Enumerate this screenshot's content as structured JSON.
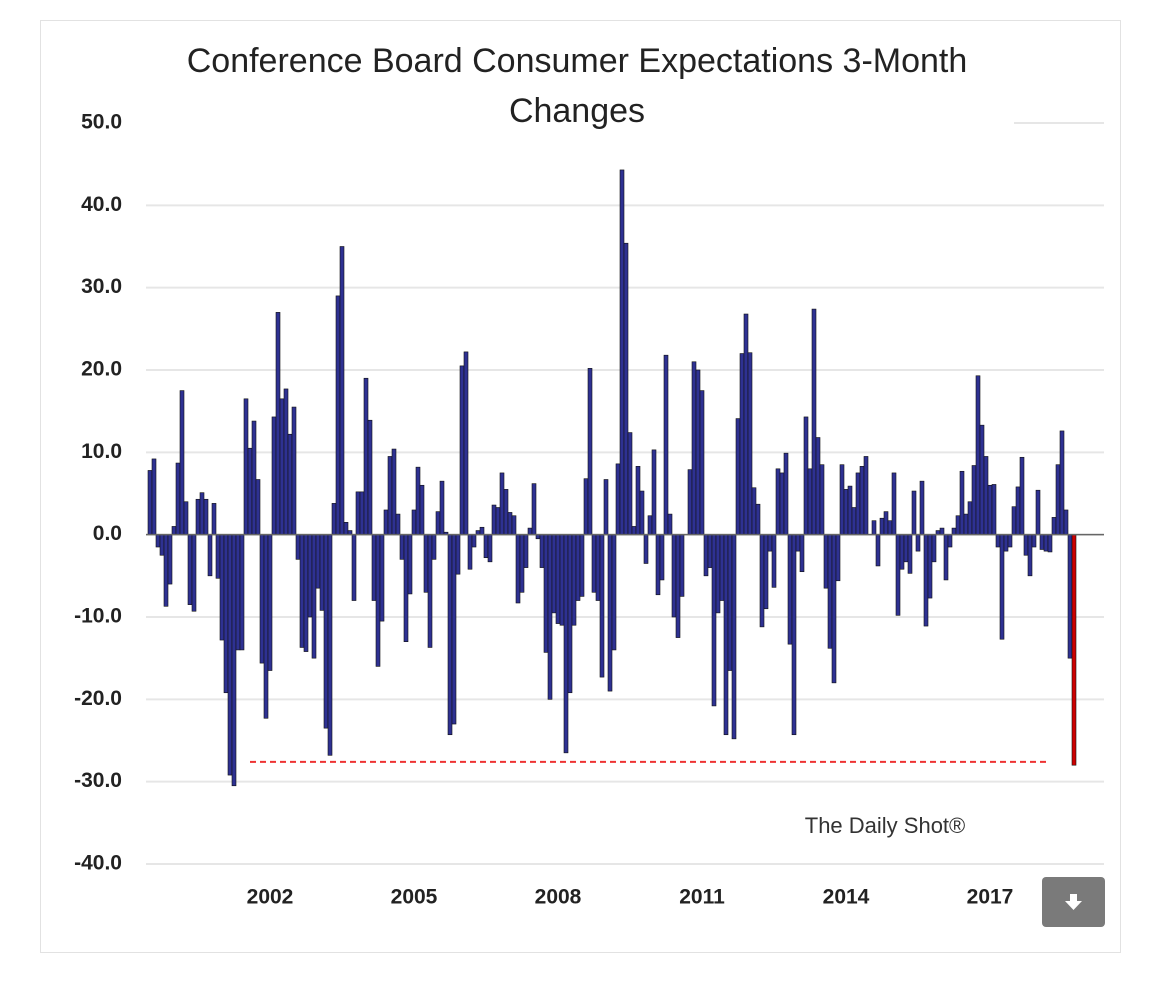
{
  "chart_data": {
    "type": "bar",
    "title": "Conference Board Consumer Expectations 3-Month Changes",
    "watermark": "The Daily Shot®",
    "categories": [
      null,
      null,
      null,
      null,
      null,
      null,
      null,
      null,
      null,
      null,
      null,
      null,
      null,
      null,
      null,
      null,
      null,
      null,
      null,
      null,
      null,
      null,
      null,
      null,
      null,
      null,
      null,
      null,
      "2002",
      null,
      null,
      null,
      null,
      null,
      null,
      null,
      null,
      null,
      null,
      null,
      null,
      null,
      null,
      null,
      null,
      null,
      null,
      null,
      null,
      null,
      null,
      null,
      null,
      null,
      null,
      null,
      null,
      null,
      null,
      null,
      null,
      null,
      null,
      null,
      "2005",
      null,
      null,
      null,
      null,
      null,
      null,
      null,
      null,
      null,
      null,
      null,
      null,
      null,
      null,
      null,
      null,
      null,
      null,
      null,
      null,
      null,
      null,
      null,
      null,
      null,
      null,
      null,
      null,
      null,
      null,
      null,
      null,
      null,
      null,
      null,
      "2008",
      null,
      null,
      null,
      null,
      null,
      null,
      null,
      null,
      null,
      null,
      null,
      null,
      null,
      null,
      null,
      null,
      null,
      null,
      null,
      null,
      null,
      null,
      null,
      null,
      null,
      null,
      null,
      null,
      null,
      null,
      null,
      null,
      null,
      null,
      null,
      "2011",
      null,
      null,
      null,
      null,
      null,
      null,
      null,
      null,
      null,
      null,
      null,
      null,
      null,
      null,
      null,
      null,
      null,
      null,
      null,
      null,
      null,
      null,
      null,
      null,
      null,
      null,
      null,
      null,
      null,
      null,
      null,
      null,
      null,
      null,
      null,
      "2014",
      null,
      null,
      null,
      null,
      null,
      null,
      null,
      null,
      null,
      null,
      null,
      null,
      null,
      null,
      null,
      null,
      null,
      null,
      null,
      null,
      null,
      null,
      null,
      null,
      null,
      null,
      null,
      null,
      null,
      null,
      null,
      null,
      null,
      null,
      null,
      "2017",
      null,
      null,
      null,
      null,
      null,
      null,
      null,
      null,
      null,
      null,
      null,
      null,
      null,
      null,
      null,
      null,
      null,
      null,
      null,
      null,
      null,
      null,
      null
    ],
    "values": [
      7.8,
      9.2,
      -1.5,
      -2.5,
      -8.7,
      -6,
      1,
      8.7,
      17.5,
      4,
      -8.5,
      -9.3,
      4.3,
      5.1,
      4.3,
      -5,
      3.8,
      -5.3,
      -12.8,
      -19.2,
      -29.2,
      -30.5,
      -14,
      -14,
      16.5,
      10.5,
      13.8,
      6.7,
      -15.6,
      -22.3,
      -16.5,
      14.3,
      27,
      16.5,
      17.7,
      12.2,
      15.5,
      -3,
      -13.7,
      -14.2,
      -10,
      -15,
      -6.5,
      -9.2,
      -23.5,
      -26.8,
      3.8,
      29,
      35,
      1.5,
      0.5,
      -8,
      5.2,
      5.2,
      19,
      13.9,
      -8,
      -16,
      -10.5,
      3,
      9.5,
      10.4,
      2.5,
      -3,
      -13,
      -7.2,
      3,
      8.2,
      6,
      -7,
      -13.7,
      -3,
      2.8,
      6.5,
      0.3,
      -24.3,
      -23,
      -4.8,
      20.5,
      22.2,
      -4.2,
      -1.5,
      0.5,
      0.9,
      -2.8,
      -3.3,
      3.6,
      3.3,
      7.5,
      5.5,
      2.7,
      2.3,
      -8.3,
      -7,
      -4,
      0.8,
      6.2,
      -0.5,
      -4,
      -14.3,
      -20,
      -9.5,
      -10.8,
      -11,
      -26.5,
      -19.2,
      -11,
      -8,
      -7.5,
      6.8,
      20.2,
      -7,
      -8,
      -17.3,
      6.7,
      -19,
      -14,
      8.6,
      44.3,
      35.4,
      12.4,
      1,
      8.3,
      5.3,
      -3.5,
      2.3,
      10.3,
      -7.3,
      -5.5,
      21.8,
      2.5,
      -10,
      -12.5,
      -7.5,
      0,
      7.9,
      21,
      20,
      17.5,
      -5,
      -4,
      -20.8,
      -9.5,
      -8,
      -24.3,
      -16.5,
      -24.8,
      14.1,
      22,
      26.8,
      22.1,
      5.7,
      3.7,
      -11.2,
      -9,
      -2,
      -6.4,
      8,
      7.5,
      9.9,
      -13.3,
      -24.3,
      -2,
      -4.5,
      14.3,
      8,
      27.4,
      11.8,
      8.5,
      -6.5,
      -13.8,
      -18,
      -5.6,
      8.5,
      5.5,
      5.9,
      3.3,
      7.5,
      8.3,
      9.5,
      0,
      1.7,
      -3.8,
      2,
      2.8,
      1.7,
      7.5,
      -9.8,
      -4.2,
      -3.3,
      -4.7,
      5.3,
      -2,
      6.5,
      -11.1,
      -7.7,
      -3.3,
      0.5,
      0.8,
      -5.5,
      -1.5,
      0.8,
      2.3,
      7.7,
      2.5,
      4,
      8.4,
      19.3,
      13.3,
      9.5,
      6,
      6.1,
      -1.5,
      -12.7,
      -2,
      -1.5,
      3.4,
      5.8,
      9.4,
      -2.5,
      -5,
      -1.5,
      5.4,
      -1.8,
      -2,
      -2.1,
      2.1,
      8.5,
      12.6,
      3,
      -15,
      -28
    ],
    "color": "#2e3192",
    "last_bar_color": "#cc0000",
    "reference_line": {
      "value": -27.6,
      "color": "#ee3333",
      "dashed": true,
      "from_index": 25,
      "to_index": 225
    },
    "ylim": [
      -40,
      50
    ],
    "yticks": [
      {
        "value": -40,
        "label": "-40.0"
      },
      {
        "value": -30,
        "label": "-30.0"
      },
      {
        "value": -20,
        "label": "-20.0"
      },
      {
        "value": -10,
        "label": "-10.0"
      },
      {
        "value": 0,
        "label": "0.0"
      },
      {
        "value": 10,
        "label": "10.0"
      },
      {
        "value": 20,
        "label": "20.0"
      },
      {
        "value": 30,
        "label": "30.0"
      },
      {
        "value": 40,
        "label": "40.0"
      },
      {
        "value": 50,
        "label": "50.0"
      }
    ],
    "grid": true
  }
}
